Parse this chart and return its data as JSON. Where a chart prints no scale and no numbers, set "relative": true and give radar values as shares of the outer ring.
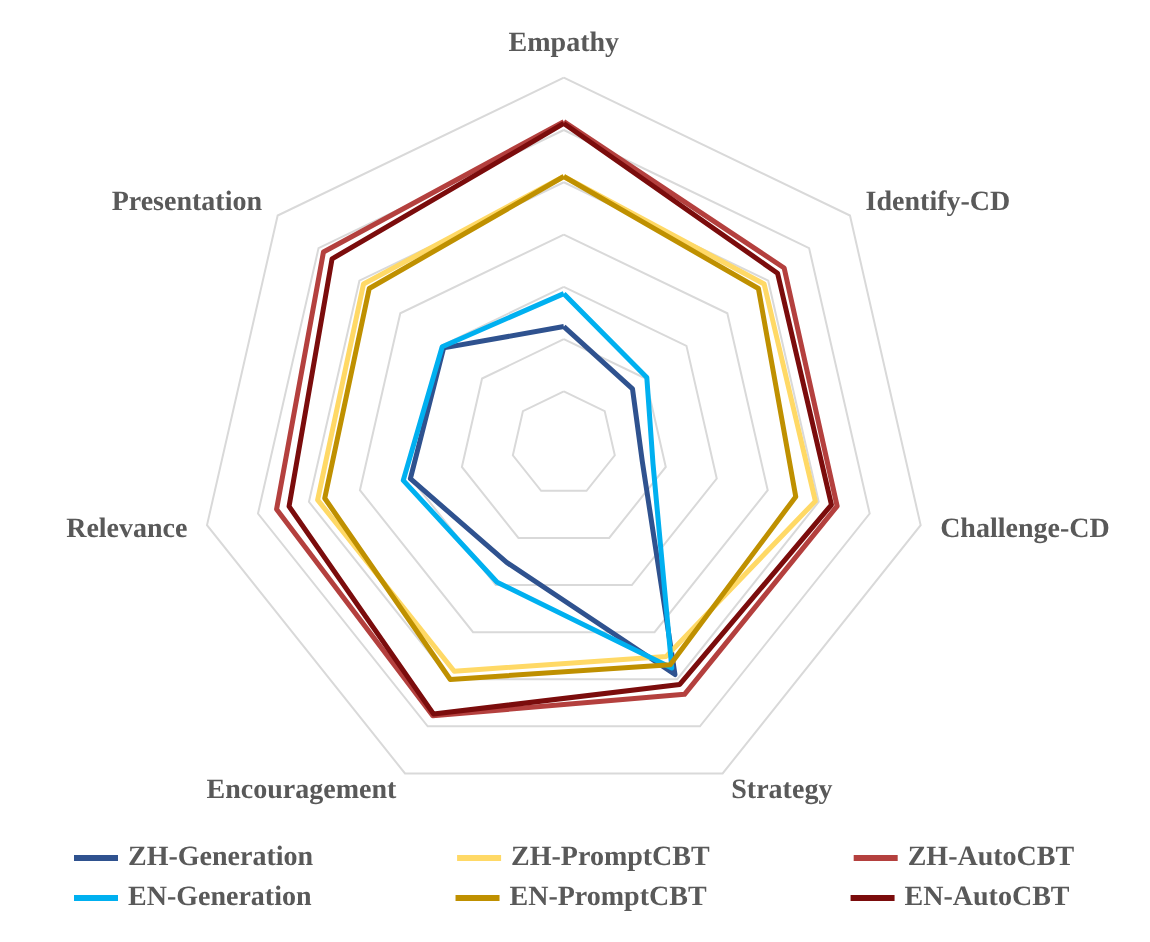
{
  "chart_data": {
    "type": "radar",
    "relative": true,
    "grid": true,
    "legend": "bottom",
    "marker": "none",
    "line_style": "solid",
    "categories": [
      "Empathy",
      "Identify-CD",
      "Challenge-CD",
      "Strategy",
      "Encouragement",
      "Relevance",
      "Presentation"
    ],
    "series": [
      {
        "name": "ZH-Generation",
        "color": "#2f528f",
        "values": [
          0.32,
          0.24,
          0.22,
          0.7,
          0.36,
          0.43,
          0.42
        ]
      },
      {
        "name": "ZH-PromptCBT",
        "color": "#ffd966",
        "values": [
          0.73,
          0.7,
          0.705,
          0.645,
          0.69,
          0.69,
          0.7
        ]
      },
      {
        "name": "ZH-AutoCBT",
        "color": "#b4403e",
        "values": [
          0.88,
          0.77,
          0.766,
          0.76,
          0.825,
          0.805,
          0.84
        ]
      },
      {
        "name": "EN-Generation",
        "color": "#00b0f0",
        "values": [
          0.41,
          0.29,
          0.25,
          0.68,
          0.42,
          0.45,
          0.425
        ]
      },
      {
        "name": "EN-PromptCBT",
        "color": "#bf9000",
        "values": [
          0.73,
          0.68,
          0.65,
          0.67,
          0.715,
          0.67,
          0.68
        ]
      },
      {
        "name": "EN-AutoCBT",
        "color": "#7b0c0c",
        "values": [
          0.875,
          0.747,
          0.75,
          0.73,
          0.82,
          0.77,
          0.81
        ]
      }
    ]
  }
}
